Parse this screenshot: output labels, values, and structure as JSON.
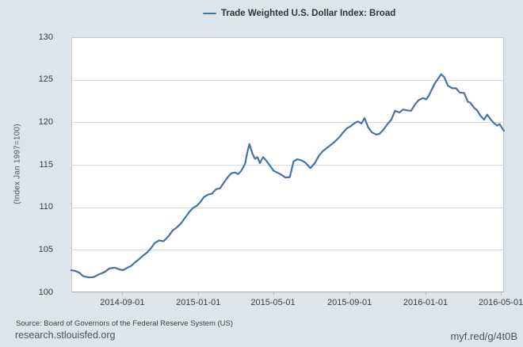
{
  "legend": {
    "items": [
      {
        "label": "Trade Weighted U.S. Dollar Index: Broad",
        "color": "#4572a7"
      }
    ]
  },
  "y_axis": {
    "title": "(Index Jan 1997=100)",
    "tick_labels": [
      "100",
      "105",
      "110",
      "115",
      "120",
      "125",
      "130"
    ],
    "min": 100,
    "max": 130
  },
  "x_axis": {
    "tick_labels": [
      "2014-09-01",
      "2015-01-01",
      "2015-05-01",
      "2015-09-01",
      "2016-01-01",
      "2016-05-01"
    ]
  },
  "footer": {
    "source_text": "Source: Board of Governors of the Federal Reserve System (US)",
    "site_link": "research.stlouisfed.org",
    "graph_link": "myf.red/g/4t0B"
  },
  "colors": {
    "line": "#4572a7",
    "background": "#dce4ec",
    "plot_bg": "#ffffff",
    "grid": "#d9d9d9",
    "plot_border": "#cccccc",
    "axis_line": "#aaaaaa",
    "tick": "#c0c0c0",
    "text": "#3b3b3b"
  },
  "chart_data": {
    "type": "line",
    "title": "Trade Weighted U.S. Dollar Index: Broad",
    "ylabel": "(Index Jan 1997=100)",
    "ylim": [
      100,
      130
    ],
    "x_range": [
      "2014-06-11",
      "2016-05-06"
    ],
    "grid": true,
    "legend_position": "top-center",
    "series": [
      {
        "name": "Trade Weighted U.S. Dollar Index: Broad",
        "x": [
          "2014-06-11",
          "2014-06-18",
          "2014-06-24",
          "2014-06-30",
          "2014-07-09",
          "2014-07-17",
          "2014-07-25",
          "2014-08-04",
          "2014-08-11",
          "2014-08-20",
          "2014-08-27",
          "2014-09-02",
          "2014-09-09",
          "2014-09-15",
          "2014-09-21",
          "2014-09-28",
          "2014-10-04",
          "2014-10-11",
          "2014-10-17",
          "2014-10-23",
          "2014-10-30",
          "2014-11-06",
          "2014-11-14",
          "2014-11-21",
          "2014-11-27",
          "2014-12-04",
          "2014-12-11",
          "2014-12-17",
          "2014-12-23",
          "2014-12-30",
          "2015-01-04",
          "2015-01-10",
          "2015-01-17",
          "2015-01-23",
          "2015-01-29",
          "2015-02-05",
          "2015-02-11",
          "2015-02-18",
          "2015-02-23",
          "2015-03-01",
          "2015-03-06",
          "2015-03-11",
          "2015-03-17",
          "2015-03-20",
          "2015-03-24",
          "2015-03-29",
          "2015-04-02",
          "2015-04-06",
          "2015-04-10",
          "2015-04-15",
          "2015-04-20",
          "2015-04-26",
          "2015-05-02",
          "2015-05-09",
          "2015-05-15",
          "2015-05-21",
          "2015-05-28",
          "2015-06-03",
          "2015-06-09",
          "2015-06-16",
          "2015-06-22",
          "2015-06-30",
          "2015-07-07",
          "2015-07-14",
          "2015-07-20",
          "2015-07-27",
          "2015-08-02",
          "2015-08-08",
          "2015-08-15",
          "2015-08-21",
          "2015-08-28",
          "2015-09-03",
          "2015-09-09",
          "2015-09-14",
          "2015-09-20",
          "2015-09-25",
          "2015-10-01",
          "2015-10-07",
          "2015-10-14",
          "2015-10-19",
          "2015-10-25",
          "2015-11-01",
          "2015-11-07",
          "2015-11-13",
          "2015-11-20",
          "2015-11-26",
          "2015-12-02",
          "2015-12-09",
          "2015-12-15",
          "2015-12-21",
          "2015-12-28",
          "2016-01-02",
          "2016-01-06",
          "2016-01-12",
          "2016-01-16",
          "2016-01-21",
          "2016-01-26",
          "2016-01-31",
          "2016-02-06",
          "2016-02-13",
          "2016-02-19",
          "2016-02-25",
          "2016-03-03",
          "2016-03-09",
          "2016-03-13",
          "2016-03-19",
          "2016-03-24",
          "2016-03-29",
          "2016-04-04",
          "2016-04-09",
          "2016-04-15",
          "2016-04-20",
          "2016-04-25",
          "2016-04-29",
          "2016-05-04",
          "2016-05-06"
        ],
        "values": [
          102.6,
          102.5,
          102.3,
          101.9,
          101.75,
          101.8,
          102.1,
          102.4,
          102.8,
          102.9,
          102.7,
          102.6,
          102.9,
          103.1,
          103.5,
          103.9,
          104.3,
          104.7,
          105.2,
          105.8,
          106.1,
          106.0,
          106.6,
          107.3,
          107.6,
          108.1,
          108.8,
          109.4,
          109.9,
          110.2,
          110.6,
          111.2,
          111.5,
          111.6,
          112.1,
          112.25,
          112.9,
          113.6,
          114.0,
          114.1,
          113.9,
          114.3,
          115.1,
          116.2,
          117.45,
          116.3,
          115.7,
          115.9,
          115.2,
          115.9,
          115.5,
          114.9,
          114.3,
          114.05,
          113.8,
          113.5,
          113.55,
          115.4,
          115.65,
          115.5,
          115.25,
          114.6,
          115.2,
          116.1,
          116.6,
          117.0,
          117.35,
          117.7,
          118.2,
          118.75,
          119.3,
          119.55,
          119.9,
          120.1,
          119.85,
          120.5,
          119.4,
          118.8,
          118.55,
          118.65,
          119.1,
          119.8,
          120.3,
          121.35,
          121.15,
          121.5,
          121.4,
          121.35,
          122.1,
          122.6,
          122.85,
          122.7,
          123.1,
          124.0,
          124.6,
          125.1,
          125.65,
          125.3,
          124.3,
          124.0,
          124.0,
          123.5,
          123.45,
          122.4,
          122.3,
          121.7,
          121.4,
          120.8,
          120.3,
          120.9,
          120.3,
          119.9,
          119.6,
          119.8,
          119.2,
          119.0
        ]
      }
    ]
  }
}
